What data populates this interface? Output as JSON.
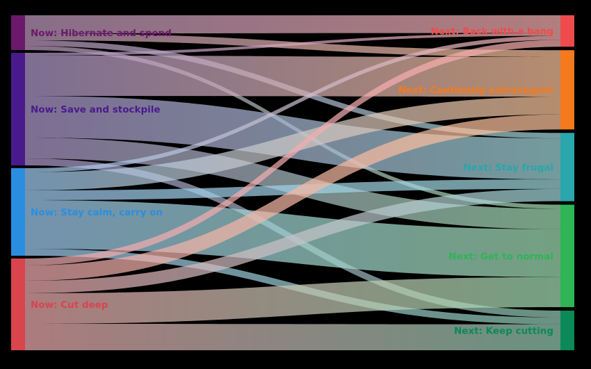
{
  "chart_data": {
    "type": "sankey",
    "sources": [
      {
        "id": "hibernate",
        "label": "Now: Hibernate and spend",
        "color": "#6b1a6b"
      },
      {
        "id": "save",
        "label": "Now: Save and stockpile",
        "color": "#4a1a8c"
      },
      {
        "id": "calm",
        "label": "Now: Stay calm, carry on",
        "color": "#2a8ee0"
      },
      {
        "id": "cut",
        "label": "Now: Cut deep",
        "color": "#d9444d"
      }
    ],
    "targets": [
      {
        "id": "bang",
        "label": "Next: Back with a bang",
        "color": "#ee4c4c"
      },
      {
        "id": "cautious",
        "label": "Next: Cautiously extravagant",
        "color": "#f57a1d"
      },
      {
        "id": "frugal",
        "label": "Next: Stay frugal",
        "color": "#2aa6ac"
      },
      {
        "id": "normal",
        "label": "Next: Get to normal",
        "color": "#2db556"
      },
      {
        "id": "cutting",
        "label": "Next: Keep cutting",
        "color": "#0b8a57"
      }
    ],
    "flows": [
      {
        "from": "hibernate",
        "to": "bang",
        "value": 26
      },
      {
        "from": "hibernate",
        "to": "cautious",
        "value": 10
      },
      {
        "from": "hibernate",
        "to": "frugal",
        "value": 8
      },
      {
        "from": "hibernate",
        "to": "normal",
        "value": 6
      },
      {
        "from": "save",
        "to": "bang",
        "value": 4
      },
      {
        "from": "save",
        "to": "cautious",
        "value": 58
      },
      {
        "from": "save",
        "to": "frugal",
        "value": 60
      },
      {
        "from": "save",
        "to": "normal",
        "value": 30
      },
      {
        "from": "save",
        "to": "cutting",
        "value": 10
      },
      {
        "from": "calm",
        "to": "bang",
        "value": 6
      },
      {
        "from": "calm",
        "to": "cautious",
        "value": 26
      },
      {
        "from": "calm",
        "to": "frugal",
        "value": 14
      },
      {
        "from": "calm",
        "to": "normal",
        "value": 70
      },
      {
        "from": "calm",
        "to": "cutting",
        "value": 10
      },
      {
        "from": "cut",
        "to": "bang",
        "value": 10
      },
      {
        "from": "cut",
        "to": "cautious",
        "value": 22
      },
      {
        "from": "cut",
        "to": "frugal",
        "value": 18
      },
      {
        "from": "cut",
        "to": "normal",
        "value": 44
      },
      {
        "from": "cut",
        "to": "cutting",
        "value": 38
      }
    ]
  }
}
